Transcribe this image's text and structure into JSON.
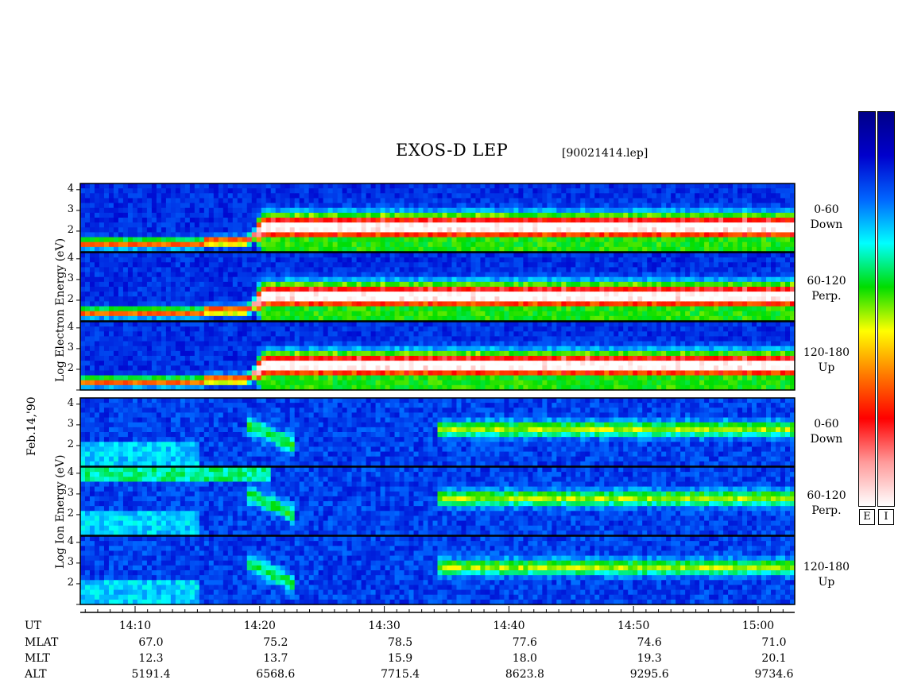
{
  "title": "EXOS-D LEP",
  "file": "[90021414.lep]",
  "date_label": "Feb.14,'90",
  "electron_label": "Log   Electron   Energy (eV)",
  "ion_label": "Log    Ion   Energy (eV)",
  "panel_labels": [
    {
      "line1": "0-60",
      "line2": "Down"
    },
    {
      "line1": "60-120",
      "line2": "Perp."
    },
    {
      "line1": "120-180",
      "line2": "Up"
    },
    {
      "line1": "0-60",
      "line2": "Down"
    },
    {
      "line1": "60-120",
      "line2": "Perp."
    },
    {
      "line1": "120-180",
      "line2": "Up"
    }
  ],
  "colorbars": [
    {
      "label": "E"
    },
    {
      "label": "I"
    }
  ],
  "colormap": [
    "#ffffff",
    "#ff9a9a",
    "#ff0000",
    "#ff7a00",
    "#ffff00",
    "#00dd00",
    "#00ffff",
    "#0066ff",
    "#0000cc",
    "#000088"
  ],
  "chart_data": {
    "type": "heatmap",
    "title": "EXOS-D LEP",
    "x_label": "UT",
    "x_range": [
      "14:04",
      "15:04"
    ],
    "y_ticks": [
      "1",
      "2",
      "3",
      "4"
    ],
    "y_scale": "log energy (eV)",
    "panels": [
      {
        "species": "Electron",
        "pitch": "0-60",
        "dir": "Down"
      },
      {
        "species": "Electron",
        "pitch": "60-120",
        "dir": "Perp."
      },
      {
        "species": "Electron",
        "pitch": "120-180",
        "dir": "Up"
      },
      {
        "species": "Ion",
        "pitch": "0-60",
        "dir": "Down"
      },
      {
        "species": "Ion",
        "pitch": "60-120",
        "dir": "Perp."
      },
      {
        "species": "Ion",
        "pitch": "120-180",
        "dir": "Up"
      }
    ],
    "info_rows": [
      {
        "label": "UT",
        "values": [
          "14:10",
          "14:20",
          "14:30",
          "14:40",
          "14:50",
          "15:00"
        ]
      },
      {
        "label": "MLAT",
        "values": [
          "67.0",
          "75.2",
          "78.5",
          "77.6",
          "74.6",
          "71.0"
        ]
      },
      {
        "label": "MLT",
        "values": [
          "12.3",
          "13.7",
          "15.9",
          "18.0",
          "19.3",
          "20.1"
        ]
      },
      {
        "label": "ALT",
        "values": [
          "5191.4",
          "6568.6",
          "7715.4",
          "8623.8",
          "9295.6",
          "9734.6"
        ]
      }
    ]
  }
}
